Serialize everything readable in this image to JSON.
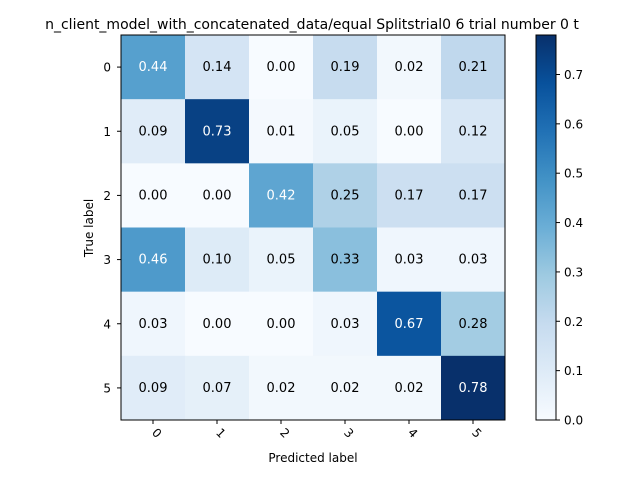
{
  "chart_data": {
    "type": "heatmap",
    "title": "n_client_model_with_concatenated_data/equal Splitstrial0 6 trial number 0  t",
    "xlabel": "Predicted label",
    "ylabel": "True label",
    "x_tick_labels": [
      "0",
      "1",
      "2",
      "3",
      "4",
      "5"
    ],
    "y_tick_labels": [
      "0",
      "1",
      "2",
      "3",
      "4",
      "5"
    ],
    "matrix": [
      [
        0.44,
        0.14,
        0.0,
        0.19,
        0.02,
        0.21
      ],
      [
        0.09,
        0.73,
        0.01,
        0.05,
        0.0,
        0.12
      ],
      [
        0.0,
        0.0,
        0.42,
        0.25,
        0.17,
        0.17
      ],
      [
        0.46,
        0.1,
        0.05,
        0.33,
        0.03,
        0.03
      ],
      [
        0.03,
        0.0,
        0.0,
        0.03,
        0.67,
        0.28
      ],
      [
        0.09,
        0.07,
        0.02,
        0.02,
        0.02,
        0.78
      ]
    ],
    "colormap": "Blues",
    "color_range": [
      0.0,
      0.78
    ],
    "colorbar_ticks": [
      "0.0",
      "0.1",
      "0.2",
      "0.3",
      "0.4",
      "0.5",
      "0.6",
      "0.7"
    ],
    "colorbar_tick_values": [
      0.0,
      0.1,
      0.2,
      0.3,
      0.4,
      0.5,
      0.6,
      0.7
    ],
    "value_format": "2-decimal",
    "text_color_dark": "#000000",
    "text_color_light": "#ffffff"
  }
}
